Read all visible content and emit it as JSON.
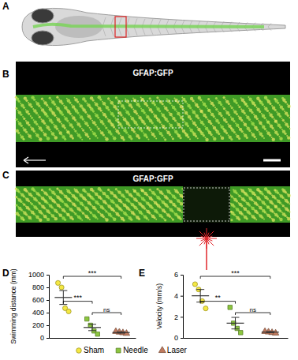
{
  "figure": {
    "panel_labels": [
      "A",
      "B",
      "C",
      "D",
      "E"
    ],
    "image_labels": [
      "GFAP:GFP",
      "GFAP:GFP"
    ]
  },
  "chart_data": [
    {
      "type": "scatter",
      "y_label": "Swimming distance (mm)",
      "ylim": [
        0,
        1000
      ],
      "yticks": [
        0,
        200,
        400,
        600,
        800,
        1000
      ],
      "tick_labels": "y",
      "legend": "bottom",
      "series": [
        {
          "name": "Sham",
          "color": "#f4e842",
          "marker": "circle",
          "values": [
            870,
            800,
            470,
            420
          ],
          "mean": 640,
          "error": 110
        },
        {
          "name": "Needle",
          "color": "#8cc63f",
          "marker": "square",
          "values": [
            300,
            200,
            110,
            60
          ],
          "mean": 165,
          "error": 50
        },
        {
          "name": "Laser",
          "color": "#c07a5e",
          "marker": "triangle",
          "values": [
            100,
            90,
            80,
            70
          ],
          "mean": 85,
          "error": 10
        }
      ],
      "annotations": [
        {
          "text": "***",
          "between": [
            "Sham",
            "Laser"
          ]
        },
        {
          "text": "***",
          "between": [
            "Sham",
            "Needle"
          ]
        },
        {
          "text": "ns",
          "between": [
            "Needle",
            "Laser"
          ]
        }
      ]
    },
    {
      "type": "scatter",
      "y_label": "Velocity (mm/s)",
      "ylim": [
        0,
        6
      ],
      "yticks": [
        0,
        2,
        4,
        6
      ],
      "tick_labels": "y",
      "series": [
        {
          "name": "Sham",
          "color": "#f4e842",
          "marker": "circle",
          "values": [
            5.1,
            4.6,
            3.5,
            2.8
          ],
          "mean": 4.0,
          "error": 0.6
        },
        {
          "name": "Needle",
          "color": "#8cc63f",
          "marker": "square",
          "values": [
            2.9,
            1.4,
            0.9,
            0.5
          ],
          "mean": 1.4,
          "error": 0.55
        },
        {
          "name": "Laser",
          "color": "#c07a5e",
          "marker": "triangle",
          "values": [
            0.6,
            0.55,
            0.5,
            0.45
          ],
          "mean": 0.55,
          "error": 0.05
        }
      ],
      "annotations": [
        {
          "text": "***",
          "between": [
            "Sham",
            "Laser"
          ]
        },
        {
          "text": "**",
          "between": [
            "Sham",
            "Needle"
          ]
        },
        {
          "text": "ns",
          "between": [
            "Needle",
            "Laser"
          ]
        }
      ]
    }
  ]
}
